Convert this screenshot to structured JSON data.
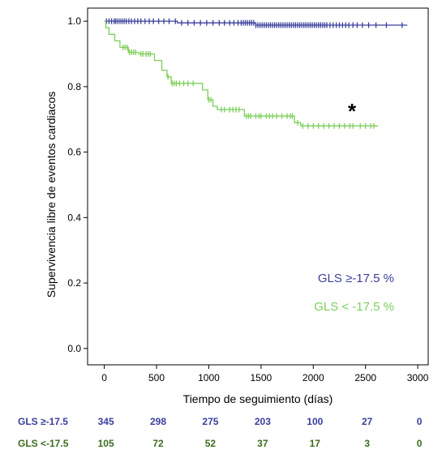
{
  "chart_data": {
    "type": "line",
    "subtype": "kaplan-meier",
    "xlabel": "Tiempo de seguimiento (días)",
    "ylabel": "Supervivencia libre de eventos cardiacos",
    "xlim": [
      -160,
      3100
    ],
    "ylim": [
      -0.05,
      1.04
    ],
    "x_ticks": [
      0,
      500,
      1000,
      1500,
      2000,
      2500,
      3000
    ],
    "y_ticks": [
      0.0,
      0.2,
      0.4,
      0.6,
      0.8,
      1.0
    ],
    "x_tick_labels": [
      "0",
      "500",
      "1000",
      "1500",
      "2000",
      "2500",
      "3000"
    ],
    "y_tick_labels": [
      "0.0",
      "0.2",
      "0.4",
      "0.6",
      "0.8",
      "1.0"
    ],
    "grid": false,
    "legend_position": "bottom-right",
    "annotation": "*",
    "series": [
      {
        "name": "GLS ≥-17.5 %",
        "color": "#3a3f9c",
        "steps": [
          [
            0,
            1.0
          ],
          [
            700,
            0.995
          ],
          [
            1450,
            0.988
          ],
          [
            2900,
            0.988
          ]
        ],
        "censor_x": [
          20,
          45,
          70,
          95,
          110,
          130,
          150,
          170,
          190,
          210,
          235,
          260,
          290,
          320,
          350,
          390,
          430,
          470,
          520,
          570,
          620,
          680,
          740,
          800,
          860,
          920,
          980,
          1040,
          1100,
          1150,
          1200,
          1240,
          1280,
          1310,
          1330,
          1350,
          1370,
          1390,
          1410,
          1430,
          1450,
          1470,
          1490,
          1510,
          1530,
          1550,
          1570,
          1590,
          1610,
          1630,
          1650,
          1670,
          1690,
          1710,
          1730,
          1750,
          1770,
          1790,
          1810,
          1830,
          1850,
          1870,
          1890,
          1910,
          1930,
          1950,
          1970,
          1990,
          2010,
          2030,
          2050,
          2070,
          2090,
          2110,
          2130,
          2160,
          2190,
          2220,
          2250,
          2280,
          2310,
          2340,
          2380,
          2420,
          2470,
          2530,
          2600,
          2700,
          2850
        ]
      },
      {
        "name": "GLS < -17.5 %",
        "color": "#7dcf5a",
        "steps": [
          [
            0,
            1.0
          ],
          [
            15,
            0.98
          ],
          [
            45,
            0.96
          ],
          [
            100,
            0.94
          ],
          [
            150,
            0.92
          ],
          [
            230,
            0.905
          ],
          [
            330,
            0.9
          ],
          [
            480,
            0.88
          ],
          [
            550,
            0.85
          ],
          [
            600,
            0.83
          ],
          [
            640,
            0.81
          ],
          [
            940,
            0.79
          ],
          [
            990,
            0.76
          ],
          [
            1040,
            0.74
          ],
          [
            1080,
            0.73
          ],
          [
            1340,
            0.71
          ],
          [
            1820,
            0.69
          ],
          [
            1880,
            0.68
          ],
          [
            2620,
            0.68
          ]
        ],
        "censor_x": [
          180,
          200,
          220,
          240,
          260,
          280,
          300,
          350,
          370,
          400,
          420,
          440,
          610,
          650,
          670,
          690,
          720,
          760,
          800,
          850,
          1000,
          1020,
          1120,
          1150,
          1200,
          1230,
          1260,
          1290,
          1360,
          1380,
          1400,
          1450,
          1480,
          1500,
          1550,
          1580,
          1610,
          1650,
          1700,
          1750,
          1780,
          1800,
          1850,
          1900,
          1950,
          2000,
          2050,
          2100,
          2150,
          2200,
          2250,
          2300,
          2350,
          2380,
          2450,
          2500,
          2550,
          2580
        ]
      }
    ]
  },
  "risk_table": {
    "timepoints": [
      0,
      500,
      1000,
      1500,
      2000,
      2500,
      3000
    ],
    "rows": [
      {
        "label": "GLS ≥-17.5",
        "color": "#3a3f9c",
        "values": [
          "345",
          "298",
          "275",
          "203",
          "100",
          "27",
          "0"
        ]
      },
      {
        "label": "GLS <-17.5",
        "color": "#3d6b1e",
        "values": [
          "105",
          "72",
          "52",
          "37",
          "17",
          "3",
          "0"
        ]
      }
    ]
  }
}
